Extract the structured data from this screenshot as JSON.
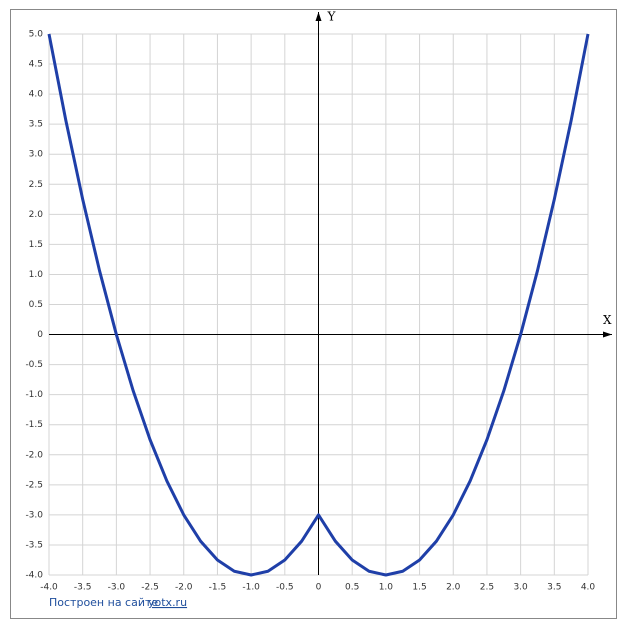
{
  "chart_data": {
    "type": "line",
    "x_label": "X",
    "y_label": "Y",
    "x": [
      -4,
      -3.75,
      -3.5,
      -3.25,
      -3,
      -2.75,
      -2.5,
      -2.25,
      -2,
      -1.75,
      -1.5,
      -1.25,
      -1,
      -0.75,
      -0.5,
      -0.25,
      0,
      0.25,
      0.5,
      0.75,
      1,
      1.25,
      1.5,
      1.75,
      2,
      2.25,
      2.5,
      2.75,
      3,
      3.25,
      3.5,
      3.75,
      4
    ],
    "series": [
      {
        "color": "#1f3fa8",
        "values": [
          5,
          3.5625,
          2.25,
          1.0625,
          0,
          -0.9375,
          -1.75,
          -2.4375,
          -3,
          -3.4375,
          -3.75,
          -3.9375,
          -4,
          -3.9375,
          -3.75,
          -3.4375,
          -3,
          -3.4375,
          -3.75,
          -3.9375,
          -4,
          -3.9375,
          -3.75,
          -3.4375,
          -3,
          -2.4375,
          -1.75,
          -0.9375,
          0,
          1.0625,
          2.25,
          3.5625,
          5
        ]
      }
    ],
    "xlim": [
      -4,
      4
    ],
    "ylim": [
      -4,
      5
    ],
    "xticks": [
      {
        "value": -4,
        "label": "-4.0"
      },
      {
        "value": -3.5,
        "label": "-3.5"
      },
      {
        "value": -3,
        "label": "-3.0"
      },
      {
        "value": -2.5,
        "label": "-2.5"
      },
      {
        "value": -2,
        "label": "-2.0"
      },
      {
        "value": -1.5,
        "label": "-1.5"
      },
      {
        "value": -1,
        "label": "-1.0"
      },
      {
        "value": -0.5,
        "label": "-0.5"
      },
      0,
      {
        "value": 0.5,
        "label": "0.5"
      },
      {
        "value": 1,
        "label": "1.0"
      },
      {
        "value": 1.5,
        "label": "1.5"
      },
      {
        "value": 2,
        "label": "2.0"
      },
      {
        "value": 2.5,
        "label": "2.5"
      },
      {
        "value": 3,
        "label": "3.0"
      },
      {
        "value": 3.5,
        "label": "3.5"
      },
      {
        "value": 4,
        "label": "4.0"
      }
    ],
    "yticks": [
      {
        "value": -4,
        "label": "-4.0"
      },
      {
        "value": -3.5,
        "label": "-3.5"
      },
      {
        "value": -3,
        "label": "-3.0"
      },
      {
        "value": -2.5,
        "label": "-2.5"
      },
      {
        "value": -2,
        "label": "-2.0"
      },
      {
        "value": -1.5,
        "label": "-1.5"
      },
      {
        "value": -1,
        "label": "-1.0"
      },
      {
        "value": -0.5,
        "label": "-0.5"
      },
      0,
      {
        "value": 0.5,
        "label": "0.5"
      },
      {
        "value": 1,
        "label": "1.0"
      },
      {
        "value": 1.5,
        "label": "1.5"
      },
      {
        "value": 2,
        "label": "2.0"
      },
      {
        "value": 2.5,
        "label": "2.5"
      },
      {
        "value": 3,
        "label": "3.0"
      },
      {
        "value": 3.5,
        "label": "3.5"
      },
      {
        "value": 4,
        "label": "4.0"
      },
      {
        "value": 4.5,
        "label": "4.5"
      },
      {
        "value": 5,
        "label": "5.0"
      }
    ],
    "grid": true
  },
  "footer": {
    "text": "Построен на сайте",
    "link": "yotx.ru"
  }
}
